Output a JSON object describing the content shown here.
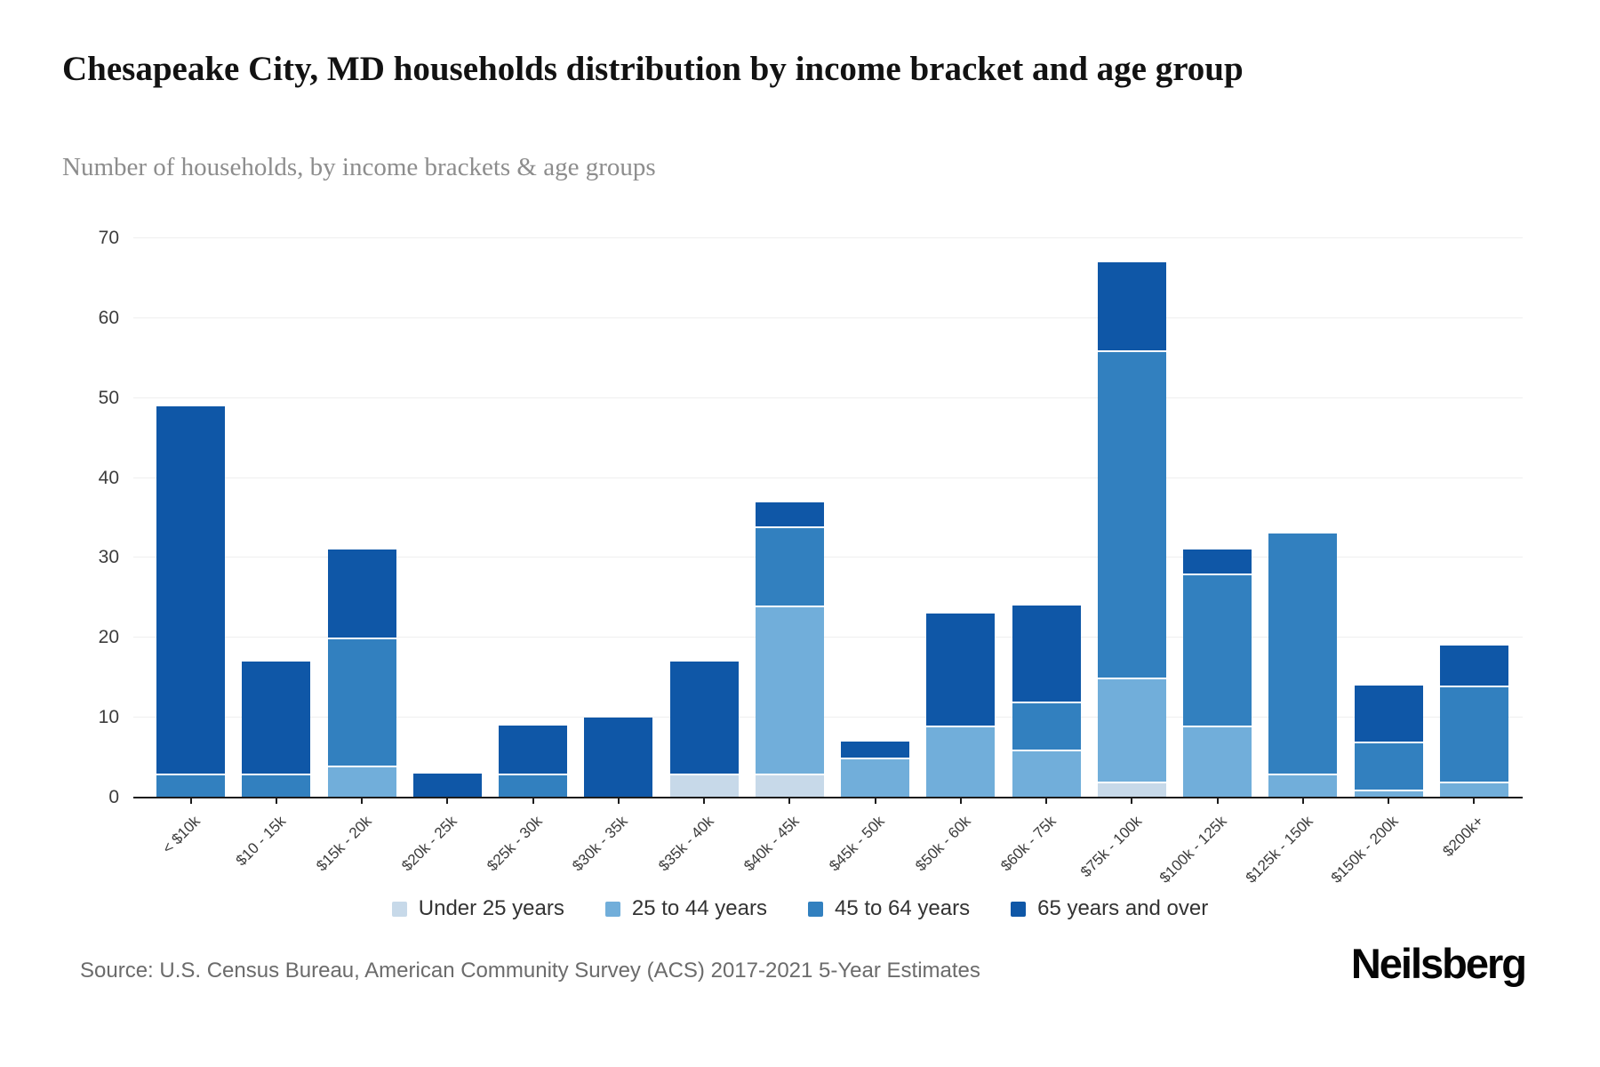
{
  "title": "Chesapeake City, MD households distribution by income bracket and age group",
  "subtitle": "Number of households, by income brackets & age groups",
  "source": "Source: U.S. Census Bureau, American Community Survey (ACS) 2017-2021 5-Year Estimates",
  "brand": "Neilsberg",
  "colors": {
    "under_25": "#c7d9e9",
    "age_25_44": "#71aeda",
    "age_45_64": "#3280bf",
    "age_65_plus": "#0f57a7",
    "gridline": "#efefef",
    "axis": "#1c1c1c"
  },
  "chart_data": {
    "type": "bar",
    "stacked": true,
    "title": "Chesapeake City, MD households distribution by income bracket and age group",
    "subtitle": "Number of households, by income brackets & age groups",
    "xlabel": "",
    "ylabel": "",
    "ylim": [
      0,
      70
    ],
    "yticks": [
      0,
      10,
      20,
      30,
      40,
      50,
      60,
      70
    ],
    "grid": "horizontal",
    "legend_position": "bottom",
    "categories": [
      "< $10k",
      "$10 - 15k",
      "$15k - 20k",
      "$20k - 25k",
      "$25k - 30k",
      "$30k - 35k",
      "$35k - 40k",
      "$40k - 45k",
      "$45k - 50k",
      "$50k - 60k",
      "$60k - 75k",
      "$75k - 100k",
      "$100k - 125k",
      "$125k - 150k",
      "$150k - 200k",
      "$200k+"
    ],
    "series": [
      {
        "name": "Under 25 years",
        "color": "#c7d9e9",
        "values": [
          0,
          0,
          0,
          0,
          0,
          0,
          3,
          3,
          0,
          0,
          0,
          2,
          0,
          0,
          0,
          0
        ]
      },
      {
        "name": "25 to 44 years",
        "color": "#71aeda",
        "values": [
          0,
          0,
          4,
          0,
          0,
          0,
          0,
          21,
          5,
          9,
          6,
          13,
          9,
          3,
          1,
          2
        ]
      },
      {
        "name": "45 to 64 years",
        "color": "#3280bf",
        "values": [
          3,
          3,
          16,
          0,
          3,
          0,
          0,
          10,
          0,
          0,
          6,
          41,
          19,
          30,
          6,
          12
        ]
      },
      {
        "name": "65 years and over",
        "color": "#0f57a7",
        "values": [
          46,
          14,
          11,
          3,
          6,
          10,
          14,
          3,
          2,
          14,
          12,
          11,
          3,
          0,
          7,
          5
        ]
      }
    ],
    "totals": [
      49,
      17,
      31,
      3,
      9,
      10,
      17,
      37,
      7,
      23,
      24,
      67,
      31,
      33,
      14,
      19
    ]
  }
}
